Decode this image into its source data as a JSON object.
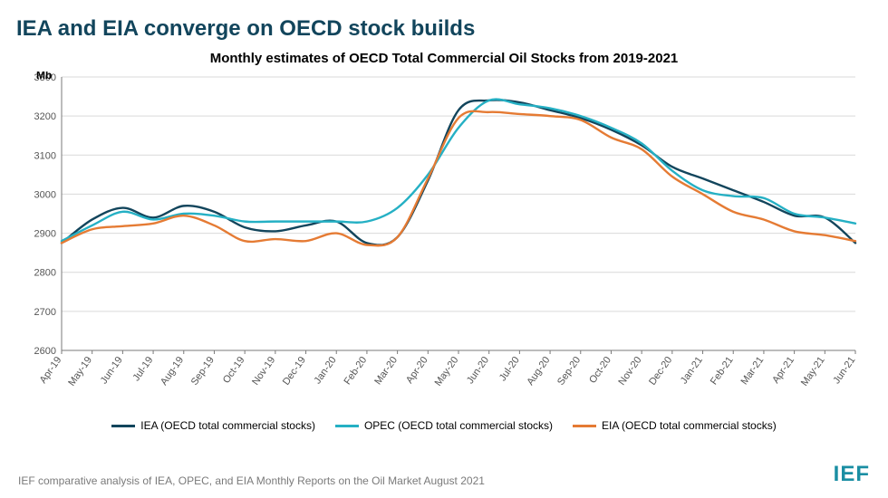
{
  "main_title": "IEA and EIA converge on OECD stock builds",
  "chart_title": "Monthly estimates of OECD Total Commercial Oil Stocks from 2019-2021",
  "source_note": "IEF comparative analysis of IEA, OPEC, and EIA Monthly Reports on the Oil Market August 2021",
  "logo_text": "IEF",
  "chart": {
    "type": "line",
    "y_axis_label": "Mb",
    "ylim": [
      2600,
      3300
    ],
    "ytick_step": 100,
    "x_categories": [
      "Apr-19",
      "May-19",
      "Jun-19",
      "Jul-19",
      "Aug-19",
      "Sep-19",
      "Oct-19",
      "Nov-19",
      "Dec-19",
      "Jan-20",
      "Feb-20",
      "Mar-20",
      "Apr-20",
      "May-20",
      "Jun-20",
      "Jul-20",
      "Aug-20",
      "Sep-20",
      "Oct-20",
      "Nov-20",
      "Dec-20",
      "Jan-21",
      "Feb-21",
      "Mar-21",
      "Apr-21",
      "May-21",
      "Jun-21"
    ],
    "background_color": "#ffffff",
    "grid_color": "#d9d9d9",
    "axis_color": "#7a7a7a",
    "label_color": "#555555",
    "label_fontsize": 11,
    "line_width": 2.4,
    "series": [
      {
        "name": "IEA (OECD total commercial stocks)",
        "color": "#12455c",
        "values": [
          2875,
          2935,
          2965,
          2940,
          2970,
          2955,
          2915,
          2905,
          2920,
          2930,
          2875,
          2890,
          3035,
          3215,
          3240,
          3235,
          3215,
          3195,
          3165,
          3125,
          3070,
          3040,
          3010,
          2980,
          2945,
          2940,
          2875
        ]
      },
      {
        "name": "OPEC (OECD total commercial stocks)",
        "color": "#25b0c4",
        "values": [
          2880,
          2920,
          2955,
          2935,
          2950,
          2945,
          2930,
          2930,
          2930,
          2930,
          2930,
          2965,
          3050,
          3170,
          3240,
          3230,
          3220,
          3200,
          3170,
          3130,
          3060,
          3010,
          2995,
          2990,
          2950,
          2940,
          2925
        ]
      },
      {
        "name": "EIA (OECD total commercial stocks)",
        "color": "#e57b34",
        "values": [
          2875,
          2910,
          2918,
          2925,
          2945,
          2920,
          2880,
          2885,
          2880,
          2900,
          2870,
          2890,
          3040,
          3195,
          3210,
          3205,
          3200,
          3190,
          3145,
          3115,
          3045,
          3000,
          2955,
          2935,
          2905,
          2895,
          2880
        ]
      }
    ]
  },
  "legend": {
    "items": [
      {
        "label": "IEA (OECD total commercial stocks)",
        "color": "#12455c"
      },
      {
        "label": "OPEC (OECD total commercial stocks)",
        "color": "#25b0c4"
      },
      {
        "label": "EIA (OECD total commercial stocks)",
        "color": "#e57b34"
      }
    ]
  }
}
